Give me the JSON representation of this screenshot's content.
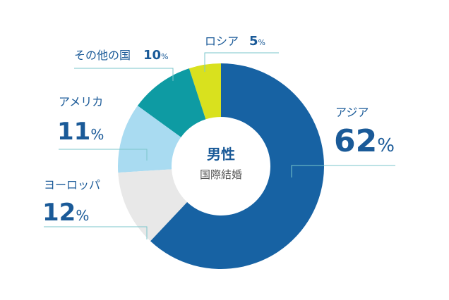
{
  "chart_data": {
    "type": "donut",
    "center_title": "男性",
    "center_subtitle": "国際結婚",
    "categories": [
      "アジア",
      "ヨーロッパ",
      "アメリカ",
      "その他の国",
      "ロシア"
    ],
    "values": [
      62,
      12,
      11,
      10,
      5
    ],
    "value_labels": [
      "62%",
      "12%",
      "11%",
      "10%",
      "5%"
    ],
    "colors": [
      "#1762a3",
      "#e8e8e8",
      "#a9dbf1",
      "#0e9ba3",
      "#d9e11e"
    ]
  }
}
